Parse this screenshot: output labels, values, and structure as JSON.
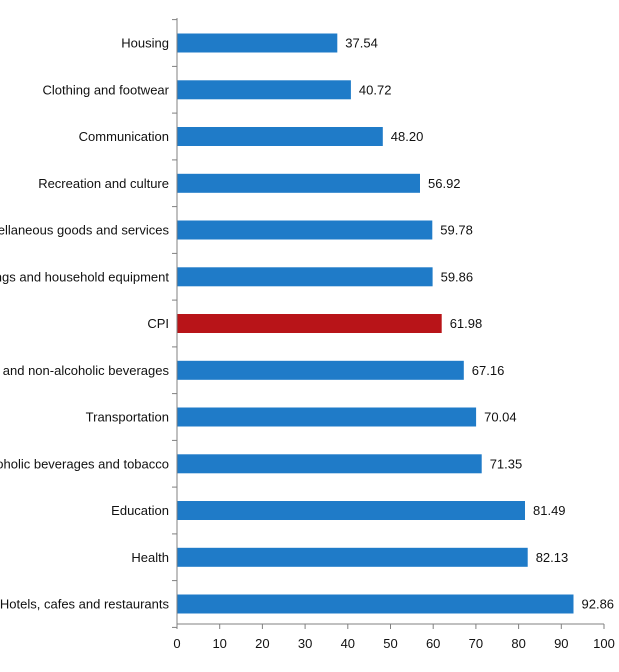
{
  "chart_data": {
    "type": "bar",
    "orientation": "horizontal",
    "categories": [
      "Housing",
      "Clothing and footwear",
      "Communication",
      "Recreation and culture",
      "Miscellaneous goods and services",
      "Furnishings and household equipment",
      "CPI",
      "Food and non-alcoholic beverages",
      "Transportation",
      "Alcoholic beverages and tobacco",
      "Education",
      "Health",
      "Hotels, cafes and restaurants"
    ],
    "values": [
      37.54,
      40.72,
      48.2,
      56.92,
      59.78,
      59.86,
      61.98,
      67.16,
      70.04,
      71.35,
      81.49,
      82.13,
      92.86
    ],
    "value_labels": [
      "37.54",
      "40.72",
      "48.20",
      "56.92",
      "59.78",
      "59.86",
      "61.98",
      "67.16",
      "70.04",
      "71.35",
      "81.49",
      "82.13",
      "92.86"
    ],
    "xlim": [
      0,
      100
    ],
    "x_ticks": [
      "0",
      "10",
      "20",
      "30",
      "40",
      "50",
      "60",
      "70",
      "80",
      "90",
      "100"
    ],
    "grid": false,
    "colors": {
      "default": "#1f7bc8",
      "highlight": "#b81418",
      "axis": "#808080",
      "text": "#111111"
    },
    "highlight_category": "CPI"
  }
}
